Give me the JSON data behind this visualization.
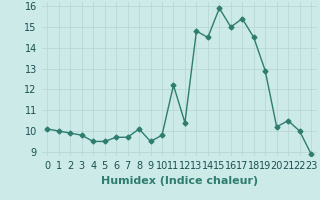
{
  "xlabel": "Humidex (Indice chaleur)",
  "x": [
    0,
    1,
    2,
    3,
    4,
    5,
    6,
    7,
    8,
    9,
    10,
    11,
    12,
    13,
    14,
    15,
    16,
    17,
    18,
    19,
    20,
    21,
    22,
    23
  ],
  "y": [
    10.1,
    10.0,
    9.9,
    9.8,
    9.5,
    9.5,
    9.7,
    9.7,
    10.1,
    9.5,
    9.8,
    12.2,
    10.4,
    14.8,
    14.5,
    15.9,
    15.0,
    15.4,
    14.5,
    12.9,
    10.2,
    10.5,
    10.0,
    8.9
  ],
  "line_color": "#2e7d6e",
  "bg_color": "#cceae8",
  "grid_color": "#b8d8d6",
  "ylim": [
    8.8,
    16.2
  ],
  "xlim": [
    -0.5,
    23.5
  ],
  "yticks": [
    9,
    10,
    11,
    12,
    13,
    14,
    15,
    16
  ],
  "xticks": [
    0,
    1,
    2,
    3,
    4,
    5,
    6,
    7,
    8,
    9,
    10,
    11,
    12,
    13,
    14,
    15,
    16,
    17,
    18,
    19,
    20,
    21,
    22,
    23
  ],
  "xtick_labels": [
    "0",
    "1",
    "2",
    "3",
    "4",
    "5",
    "6",
    "7",
    "8",
    "9",
    "10",
    "11",
    "12",
    "13",
    "14",
    "15",
    "16",
    "17",
    "18",
    "19",
    "20",
    "21",
    "22",
    "23"
  ],
  "marker": "D",
  "marker_size": 2.5,
  "linewidth": 1.0,
  "tick_fontsize": 7,
  "xlabel_fontsize": 8
}
